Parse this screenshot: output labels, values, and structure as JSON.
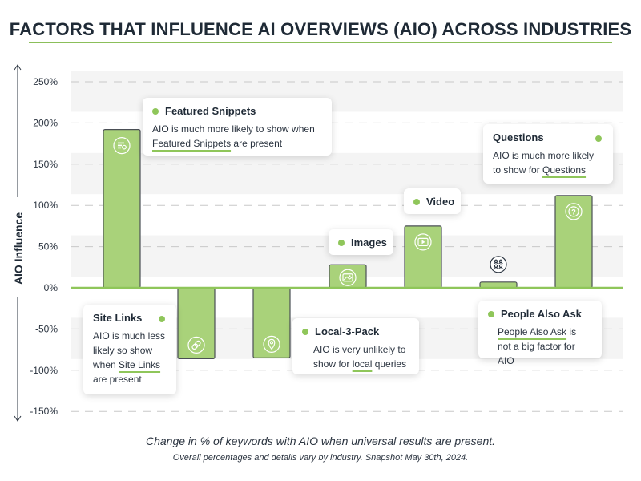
{
  "title": "FACTORS THAT INFLUENCE AI OVERVIEWS (AIO) ACROSS INDUSTRIES",
  "caption_main": "Change in % of keywords with AIO when universal results are present.",
  "caption_sub": "Overall percentages and details vary by industry.  Snapshot May 30th, 2024.",
  "colors": {
    "bar": "#a9d27a",
    "bar_stroke": "#4a4f55",
    "accent": "#8fc65a",
    "zero_line": "#8fc65a",
    "grid": "#c8c8c8",
    "band": "#f4f4f4"
  },
  "chart_data": {
    "type": "bar",
    "title": "FACTORS THAT INFLUENCE AI OVERVIEWS (AIO) ACROSS INDUSTRIES",
    "xlabel": "",
    "ylabel": "AIO Influence",
    "ylim": [
      -150,
      250
    ],
    "yticks": [
      250,
      200,
      150,
      100,
      50,
      0,
      -50,
      -100,
      -150
    ],
    "ytick_labels": [
      "250%",
      "200%",
      "150%",
      "100%",
      "50%",
      "0%",
      "-50%",
      "-100%",
      "-150%"
    ],
    "grid": true,
    "categories": [
      "Featured Snippets",
      "Site Links",
      "Local-3-Pack",
      "Images",
      "Video",
      "People Also Ask",
      "Questions"
    ],
    "values": [
      192,
      -86,
      -85,
      28,
      75,
      7,
      112
    ],
    "icons": [
      "featured-snippet-icon",
      "link-icon",
      "map-pin-icon",
      "image-icon",
      "video-play-icon",
      "people-icon",
      "question-icon"
    ]
  },
  "callouts": {
    "featured_snippets": {
      "title": "Featured Snippets",
      "text_pre": "AIO is much more likely to show when ",
      "text_ul": "Featured Snippets",
      "text_post": " are present"
    },
    "site_links": {
      "title": "Site Links",
      "text_pre": "AIO is much less likely so show when ",
      "text_ul": "Site Links",
      "text_post": " are present"
    },
    "local_3_pack": {
      "title": "Local-3-Pack",
      "text_pre": "AIO is very unlikely to show for ",
      "text_ul": "local",
      "text_post": " queries"
    },
    "images": {
      "title": "Images"
    },
    "video": {
      "title": "Video"
    },
    "people_also_ask": {
      "title": "People Also Ask",
      "text_ul": "People Also Ask",
      "text_post": " is not a big factor for AIO"
    },
    "questions": {
      "title": "Questions",
      "text_pre": "AIO is much more likely to show for ",
      "text_ul": "Questions",
      "text_post": ""
    }
  }
}
